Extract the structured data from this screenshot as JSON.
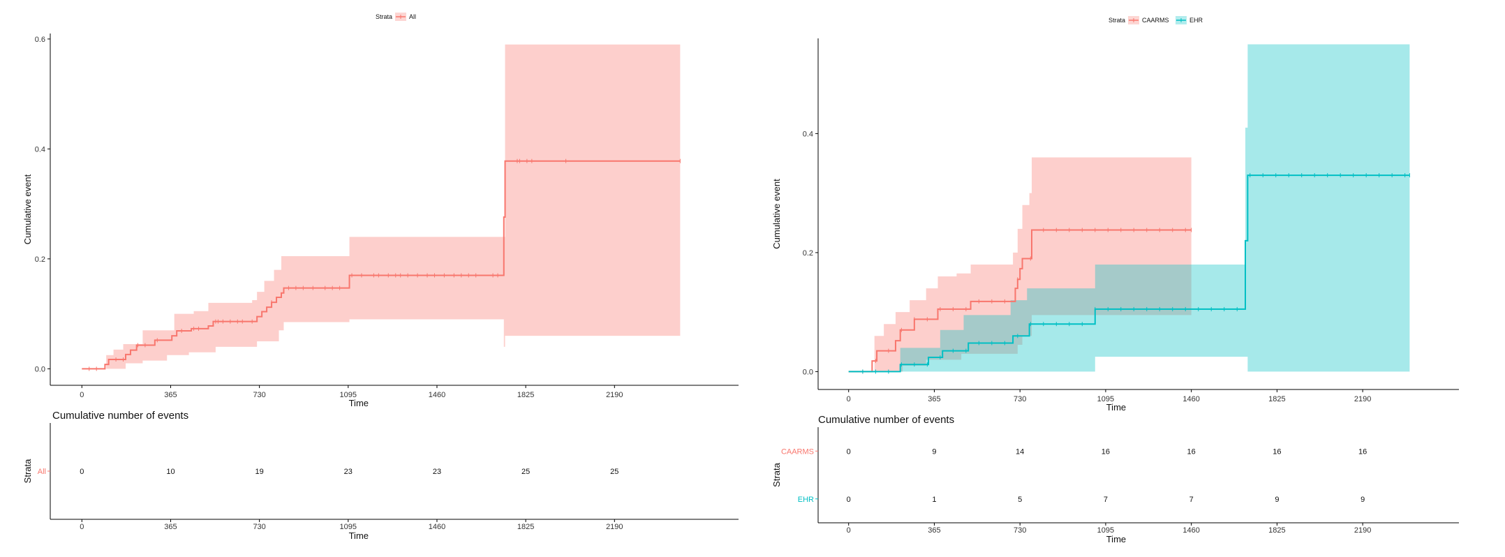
{
  "colors": {
    "caarms": "#F8766D",
    "ehr": "#00BFC4",
    "all": "#F8766D",
    "axis": "#000000"
  },
  "chart_data": [
    {
      "type": "line",
      "legend_title": "Strata",
      "legend_placement": "top",
      "xlabel": "Time",
      "ylabel": "Cumulative event",
      "xticks": [
        0,
        365,
        730,
        1095,
        1460,
        1825,
        2190
      ],
      "xlim": [
        -130,
        2700
      ],
      "yticks": [
        0.0,
        0.2,
        0.4,
        0.6
      ],
      "ytick_labels": [
        "0.0",
        "0.2",
        "0.4",
        "0.6"
      ],
      "ylim": [
        -0.03,
        0.61
      ],
      "series": [
        {
          "name": "All",
          "color": "#F8766D",
          "steps": [
            [
              0,
              0
            ],
            [
              80,
              0
            ],
            [
              95,
              0.008
            ],
            [
              110,
              0.017
            ],
            [
              150,
              0.017
            ],
            [
              180,
              0.026
            ],
            [
              200,
              0.034
            ],
            [
              225,
              0.043
            ],
            [
              275,
              0.043
            ],
            [
              300,
              0.052
            ],
            [
              330,
              0.052
            ],
            [
              370,
              0.06
            ],
            [
              390,
              0.069
            ],
            [
              440,
              0.069
            ],
            [
              450,
              0.073
            ],
            [
              520,
              0.078
            ],
            [
              540,
              0.086
            ],
            [
              600,
              0.086
            ],
            [
              720,
              0.095
            ],
            [
              740,
              0.104
            ],
            [
              760,
              0.112
            ],
            [
              780,
              0.121
            ],
            [
              800,
              0.13
            ],
            [
              820,
              0.138
            ],
            [
              830,
              0.147
            ],
            [
              1080,
              0.147
            ],
            [
              1100,
              0.17
            ],
            [
              1730,
              0.17
            ],
            [
              1735,
              0.276
            ],
            [
              1740,
              0.378
            ],
            [
              2460,
              0.378
            ]
          ],
          "ci_upper": [
            [
              0,
              0
            ],
            [
              80,
              0
            ],
            [
              100,
              0.025
            ],
            [
              130,
              0.035
            ],
            [
              170,
              0.045
            ],
            [
              250,
              0.07
            ],
            [
              380,
              0.1
            ],
            [
              460,
              0.105
            ],
            [
              520,
              0.12
            ],
            [
              700,
              0.125
            ],
            [
              720,
              0.14
            ],
            [
              750,
              0.16
            ],
            [
              790,
              0.18
            ],
            [
              820,
              0.205
            ],
            [
              1080,
              0.205
            ],
            [
              1100,
              0.24
            ],
            [
              1730,
              0.24
            ],
            [
              1740,
              0.59
            ],
            [
              2460,
              0.59
            ]
          ],
          "ci_lower": [
            [
              0,
              0
            ],
            [
              80,
              0
            ],
            [
              120,
              0
            ],
            [
              180,
              0.01
            ],
            [
              250,
              0.015
            ],
            [
              350,
              0.025
            ],
            [
              440,
              0.03
            ],
            [
              550,
              0.04
            ],
            [
              720,
              0.05
            ],
            [
              810,
              0.07
            ],
            [
              830,
              0.085
            ],
            [
              1080,
              0.085
            ],
            [
              1100,
              0.09
            ],
            [
              1730,
              0.09
            ],
            [
              1735,
              0.04
            ],
            [
              1740,
              0.06
            ],
            [
              2460,
              0.06
            ]
          ],
          "censor_x": [
            30,
            60,
            140,
            170,
            230,
            260,
            310,
            410,
            460,
            480,
            550,
            560,
            580,
            610,
            640,
            660,
            700,
            780,
            850,
            880,
            910,
            950,
            1000,
            1030,
            1060,
            1110,
            1150,
            1200,
            1220,
            1260,
            1290,
            1310,
            1340,
            1380,
            1420,
            1450,
            1490,
            1530,
            1560,
            1590,
            1620,
            1690,
            1710,
            1790,
            1800,
            1830,
            1850,
            1990,
            2460
          ]
        }
      ],
      "risk_table": {
        "title": "Cumulative number of events",
        "y_title": "Strata",
        "xlabel": "Time",
        "rows": [
          {
            "name": "All",
            "color": "#F8766D",
            "values": [
              "0",
              "10",
              "19",
              "23",
              "23",
              "25",
              "25"
            ]
          }
        ]
      }
    },
    {
      "type": "line",
      "legend_title": "Strata",
      "legend_placement": "top",
      "xlabel": "Time",
      "ylabel": "Cumulative event",
      "xticks": [
        0,
        365,
        730,
        1095,
        1460,
        1825,
        2190
      ],
      "xlim": [
        -130,
        2600
      ],
      "yticks": [
        0.0,
        0.2,
        0.4
      ],
      "ytick_labels": [
        "0.0",
        "0.2",
        "0.4"
      ],
      "ylim": [
        -0.03,
        0.56
      ],
      "series": [
        {
          "name": "CAARMS",
          "color": "#F8766D",
          "steps": [
            [
              0,
              0
            ],
            [
              90,
              0
            ],
            [
              100,
              0.018
            ],
            [
              120,
              0.035
            ],
            [
              180,
              0.035
            ],
            [
              200,
              0.052
            ],
            [
              220,
              0.07
            ],
            [
              270,
              0.07
            ],
            [
              280,
              0.088
            ],
            [
              360,
              0.088
            ],
            [
              380,
              0.105
            ],
            [
              500,
              0.105
            ],
            [
              520,
              0.118
            ],
            [
              700,
              0.118
            ],
            [
              710,
              0.14
            ],
            [
              720,
              0.155
            ],
            [
              730,
              0.173
            ],
            [
              740,
              0.19
            ],
            [
              770,
              0.19
            ],
            [
              780,
              0.238
            ],
            [
              1460,
              0.238
            ]
          ],
          "ci_upper": [
            [
              0,
              0
            ],
            [
              90,
              0
            ],
            [
              110,
              0.06
            ],
            [
              150,
              0.08
            ],
            [
              200,
              0.1
            ],
            [
              260,
              0.12
            ],
            [
              330,
              0.14
            ],
            [
              380,
              0.16
            ],
            [
              460,
              0.165
            ],
            [
              520,
              0.18
            ],
            [
              700,
              0.2
            ],
            [
              720,
              0.24
            ],
            [
              740,
              0.28
            ],
            [
              770,
              0.3
            ],
            [
              780,
              0.36
            ],
            [
              1460,
              0.36
            ]
          ],
          "ci_lower": [
            [
              0,
              0
            ],
            [
              200,
              0
            ],
            [
              230,
              0.01
            ],
            [
              330,
              0.02
            ],
            [
              480,
              0.03
            ],
            [
              720,
              0.045
            ],
            [
              740,
              0.06
            ],
            [
              780,
              0.095
            ],
            [
              1460,
              0.095
            ]
          ]
        },
        {
          "name": "EHR",
          "color": "#00BFC4",
          "steps": [
            [
              0,
              0
            ],
            [
              210,
              0
            ],
            [
              220,
              0.012
            ],
            [
              330,
              0.012
            ],
            [
              340,
              0.024
            ],
            [
              390,
              0.024
            ],
            [
              400,
              0.035
            ],
            [
              500,
              0.035
            ],
            [
              510,
              0.048
            ],
            [
              690,
              0.048
            ],
            [
              700,
              0.06
            ],
            [
              760,
              0.06
            ],
            [
              770,
              0.08
            ],
            [
              1040,
              0.08
            ],
            [
              1050,
              0.105
            ],
            [
              1680,
              0.105
            ],
            [
              1690,
              0.22
            ],
            [
              1700,
              0.33
            ],
            [
              2390,
              0.33
            ]
          ],
          "ci_upper": [
            [
              0,
              0
            ],
            [
              210,
              0
            ],
            [
              220,
              0.04
            ],
            [
              390,
              0.07
            ],
            [
              490,
              0.095
            ],
            [
              690,
              0.12
            ],
            [
              760,
              0.14
            ],
            [
              1040,
              0.14
            ],
            [
              1050,
              0.18
            ],
            [
              1680,
              0.18
            ],
            [
              1690,
              0.41
            ],
            [
              1700,
              0.55
            ],
            [
              2390,
              0.55
            ]
          ],
          "ci_lower": [
            [
              0,
              0
            ],
            [
              1040,
              0
            ],
            [
              1050,
              0.025
            ],
            [
              1680,
              0.025
            ],
            [
              1700,
              0
            ],
            [
              2390,
              0
            ]
          ]
        }
      ],
      "risk_table": {
        "title": "Cumulative number of events",
        "y_title": "Strata",
        "xlabel": "Time",
        "rows": [
          {
            "name": "CAARMS",
            "color": "#F8766D",
            "values": [
              "0",
              "9",
              "14",
              "16",
              "16",
              "16",
              "16"
            ]
          },
          {
            "name": "EHR",
            "color": "#00BFC4",
            "values": [
              "0",
              "1",
              "5",
              "7",
              "7",
              "9",
              "9"
            ]
          }
        ]
      }
    }
  ]
}
